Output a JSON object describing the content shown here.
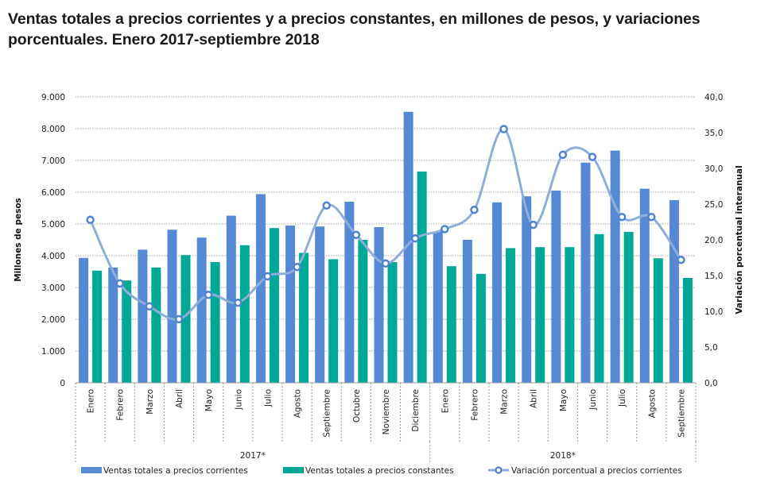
{
  "title": "Ventas totales a precios corrientes y a precios constantes, en millones de pesos, y variaciones porcentuales. Enero 2017-septiembre 2018",
  "colors": {
    "corrientes": "#5589d4",
    "constantes": "#00a898",
    "variacion_line": "#8eaed9",
    "variacion_marker": "#4f83d1",
    "grid": "#a6a6a6"
  },
  "chart_data": {
    "type": "bar",
    "title": "Ventas totales a precios corrientes y a precios constantes, en millones de pesos, y variaciones porcentuales. Enero 2017-septiembre 2018",
    "ylabel": "Millones de pesos",
    "y2label": "Variación porcentual interanual",
    "xlabel": "",
    "ylim": [
      0,
      9000
    ],
    "y2lim": [
      0,
      40
    ],
    "yticks": [
      "0",
      "1.000",
      "2.000",
      "3.000",
      "4.000",
      "5.000",
      "6.000",
      "7.000",
      "8.000",
      "9.000"
    ],
    "y2ticks": [
      "0,0",
      "5,0",
      "10,0",
      "15,0",
      "20,0",
      "25,0",
      "30,0",
      "35,0",
      "40,0"
    ],
    "grid": true,
    "legend_position": "bottom",
    "groups": [
      {
        "label": "2017*",
        "count": 12
      },
      {
        "label": "2018*",
        "count": 9
      }
    ],
    "categories": [
      "Enero",
      "Febrero",
      "Marzo",
      "Abril",
      "Mayo",
      "Junio",
      "Julio",
      "Agosto",
      "Septiembre",
      "Octubre",
      "Noviembre",
      "Diciembre",
      "Enero",
      "Febrero",
      "Marzo",
      "Abril",
      "Mayo",
      "Junio",
      "Julio",
      "Agosto",
      "Septiembre"
    ],
    "series": [
      {
        "name": "Ventas totales a precios corrientes",
        "type": "bar",
        "axis": "left",
        "values": [
          3930,
          3630,
          4190,
          4820,
          4570,
          5260,
          5940,
          4950,
          4920,
          5700,
          4900,
          8530,
          4760,
          4500,
          5680,
          5870,
          6050,
          6930,
          7310,
          6110,
          5750
        ]
      },
      {
        "name": "Ventas totales a precios constantes",
        "type": "bar",
        "axis": "left",
        "values": [
          3530,
          3220,
          3630,
          4020,
          3800,
          4330,
          4870,
          4090,
          3890,
          4500,
          3800,
          6650,
          3670,
          3430,
          4240,
          4270,
          4270,
          4680,
          4750,
          3920,
          3300
        ]
      },
      {
        "name": "Variación porcentual a precios corrientes",
        "type": "line",
        "axis": "right",
        "values": [
          22.8,
          13.9,
          10.7,
          8.9,
          12.3,
          11.2,
          14.9,
          16.2,
          24.8,
          20.7,
          16.7,
          20.2,
          21.5,
          24.2,
          35.5,
          22.1,
          31.9,
          31.6,
          23.2,
          23.2,
          17.2
        ]
      }
    ]
  }
}
